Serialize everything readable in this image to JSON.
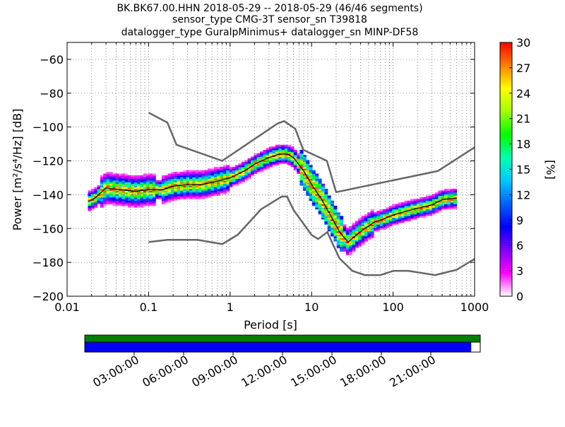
{
  "chart_data": [
    {
      "type": "heatmap",
      "title_lines": [
        "BK.BK67.00.HHN   2018-05-29 -- 2018-05-29  (46/46 segments)",
        "sensor_type CMG-3T sensor_sn T39818",
        "datalogger_type GuralpMinimus+ datalogger_sn MINP-DF58"
      ],
      "xlabel": "Period [s]",
      "ylabel": "Power [m²/s⁴/Hz] [dB]",
      "xscale": "log",
      "xlim": [
        0.01,
        1000
      ],
      "ylim": [
        -200,
        -50
      ],
      "grid": true,
      "x_ticks": [
        0.01,
        0.1,
        1,
        10,
        100,
        1000
      ],
      "x_tick_labels": [
        "0.01",
        "0.1",
        "1",
        "10",
        "100",
        "1000"
      ],
      "y_ticks": [
        -200,
        -180,
        -160,
        -140,
        -120,
        -100,
        -80,
        -60
      ],
      "y_tick_labels": [
        "−200",
        "−180",
        "−160",
        "−140",
        "−120",
        "−100",
        "−80",
        "−60"
      ],
      "colorbar": {
        "label": "[%]",
        "min": 0,
        "max": 30,
        "ticks": [
          0,
          3,
          6,
          9,
          12,
          15,
          18,
          21,
          24,
          27,
          30
        ],
        "tick_labels": [
          "0",
          "3",
          "6",
          "9",
          "12",
          "15",
          "18",
          "21",
          "24",
          "27",
          "30"
        ]
      },
      "noise_models": [
        {
          "name": "high",
          "x": [
            0.1,
            0.17,
            0.22,
            0.8,
            3.8,
            4.6,
            6.3,
            7.9,
            15.4,
            20,
            354,
            1000
          ],
          "y": [
            -91.5,
            -97.4,
            -110.5,
            -120,
            -98,
            -96.5,
            -101,
            -113.5,
            -120,
            -138.5,
            -126,
            -112
          ]
        },
        {
          "name": "low",
          "x": [
            0.1,
            0.17,
            0.4,
            0.8,
            1.24,
            2.4,
            4.3,
            5.0,
            6.0,
            10.0,
            12.0,
            15.6,
            21.9,
            31.6,
            45,
            70,
            101,
            154,
            328,
            600,
            1000
          ],
          "y": [
            -168,
            -166.7,
            -166.7,
            -169.2,
            -163.7,
            -148.6,
            -141.1,
            -141.1,
            -149,
            -163.8,
            -166.2,
            -162.1,
            -177.5,
            -185,
            -187.5,
            -187.5,
            -185,
            -185,
            -187.5,
            -184.4,
            -178
          ]
        }
      ],
      "mean_curve": {
        "x": [
          0.018,
          0.022,
          0.03,
          0.045,
          0.07,
          0.1,
          0.15,
          0.2,
          0.3,
          0.45,
          0.7,
          1,
          1.5,
          2,
          3,
          4,
          5,
          6,
          8,
          10,
          13,
          17,
          22,
          28,
          35,
          45,
          60,
          80,
          100,
          140,
          200,
          300,
          400,
          600
        ],
        "y": [
          -144,
          -142,
          -136,
          -137,
          -138,
          -137,
          -137,
          -135,
          -134,
          -134,
          -132,
          -130,
          -126,
          -122,
          -118,
          -116,
          -116,
          -118,
          -126,
          -134,
          -142,
          -152,
          -162,
          -168,
          -164,
          -160,
          -156,
          -154,
          -152,
          -150,
          -148,
          -146,
          -143,
          -142
        ]
      }
    },
    {
      "type": "timeline",
      "x_tick_labels": [
        "03:00:00",
        "06:00:00",
        "09:00:00",
        "12:00:00",
        "15:00:00",
        "18:00:00",
        "21:00:00"
      ],
      "bars": [
        {
          "name": "data",
          "color": "#008000",
          "coverage": [
            0.0,
            1.0
          ]
        },
        {
          "name": "psd",
          "color": "#0000ff",
          "coverage": [
            0.0,
            0.977
          ]
        }
      ]
    }
  ],
  "colors": {
    "noise_model": "#666666",
    "mean_curve": "#000000",
    "grid": "#555555",
    "colormap": [
      "#ffffff",
      "#ff00ff",
      "#8000ff",
      "#0000ff",
      "#0060ff",
      "#00c8ff",
      "#00ffb0",
      "#00ff00",
      "#a0ff00",
      "#ffff00",
      "#ff8000",
      "#ff0000"
    ]
  }
}
